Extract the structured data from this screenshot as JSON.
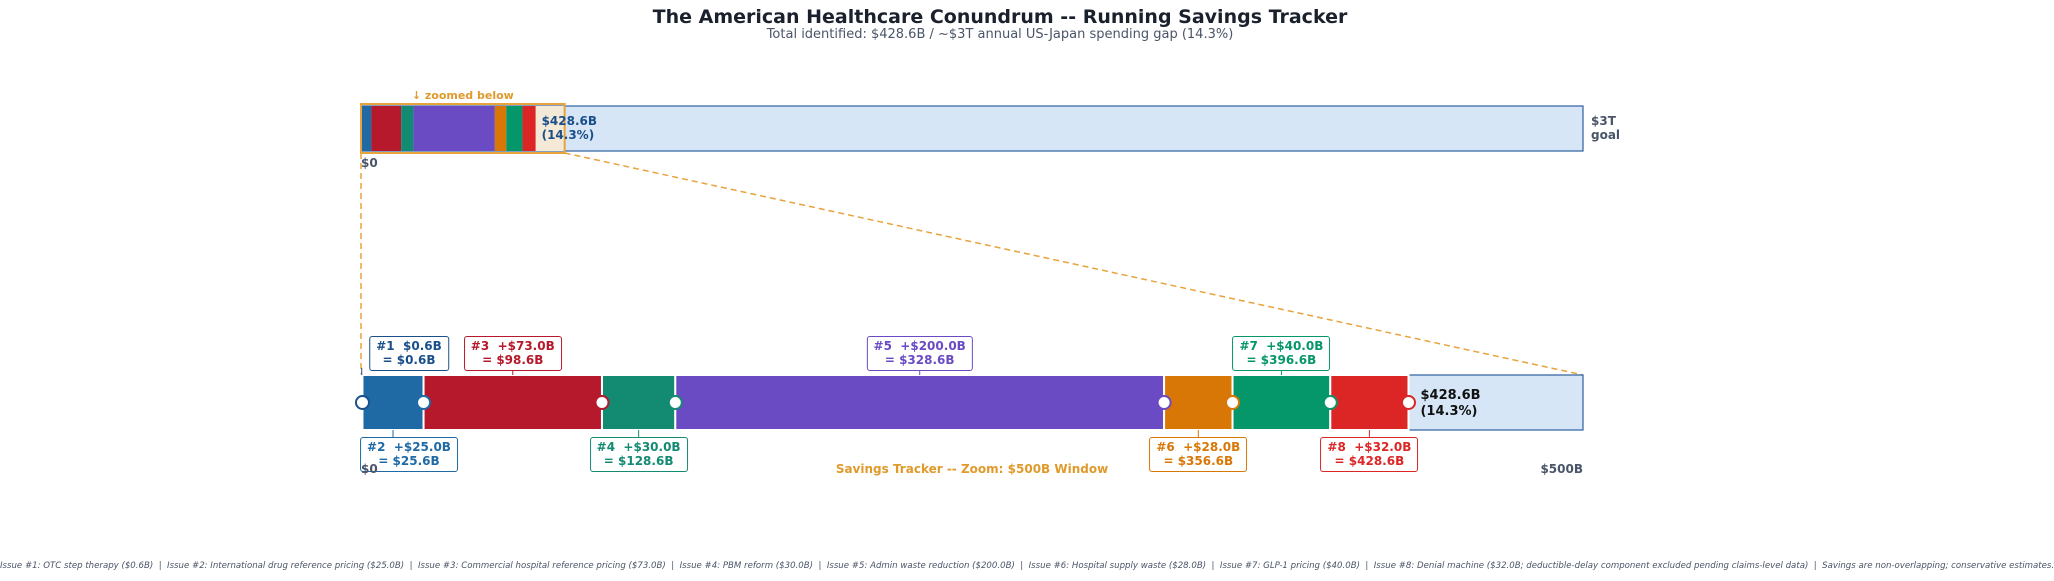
{
  "chart_data": {
    "type": "tracker",
    "title": "The American Healthcare Conundrum -- Running Savings Tracker",
    "subtitle": "Total identified: $428.6B / ~$3T annual US-Japan spending gap (14.3%)",
    "categories": [
      "#1",
      "#2",
      "#3",
      "#4",
      "#5",
      "#6",
      "#7",
      "#8"
    ],
    "values": [
      0.6,
      25.0,
      73.0,
      30.0,
      200.0,
      28.0,
      40.0,
      32.0
    ],
    "value_labels": [
      "#1  $0.6B\n= $0.6B",
      "#2  +$25.0B\n= $25.6B",
      "#3  +$73.0B\n= $98.6B",
      "#4  +$30.0B\n= $128.6B",
      "#5  +$200.0B\n= $328.6B",
      "#6  +$28.0B\n= $356.6B",
      "#7  +$40.0B\n= $396.6B",
      "#8  +$32.0B\n= $428.6B"
    ],
    "label_side": [
      "top",
      "bottom",
      "top",
      "bottom",
      "top",
      "bottom",
      "top",
      "bottom"
    ],
    "colors": [
      "#1a4f8a",
      "#1f6aa5",
      "#b5192b",
      "#138a72",
      "#6a4bc4",
      "#d97706",
      "#059669",
      "#dc2626"
    ],
    "total_label": "$428.6B\n(14.3%)",
    "overview": {
      "xlim": [
        0,
        3000
      ],
      "xticks": [
        {
          "value": 0,
          "label": "$0"
        },
        {
          "value": 3000,
          "label": "$3T\ngoal"
        }
      ],
      "zoom_note": "↓ zoomed below"
    },
    "zoom": {
      "xlim": [
        0,
        500
      ],
      "xticks": [
        {
          "value": 0,
          "label": "$0"
        },
        {
          "value": 500,
          "label": "$500B"
        }
      ],
      "caption": "Savings Tracker -- Zoom: $500B Window"
    },
    "footnote": "Issue #1: OTC step therapy ($0.6B)  |  Issue #2: International drug reference pricing ($25.0B)  |  Issue #3: Commercial hospital reference pricing ($73.0B)  |  Issue #4: PBM reform ($30.0B)  |  Issue #5: Admin waste reduction ($200.0B)  |  Issue #6: Hospital supply waste ($28.0B)  |  Issue #7: GLP-1 pricing ($40.0B)  |  Issue #8: Denial machine ($32.0B; deductible-delay component excluded pending claims-level data)  |  Savings are non-overlapping; conservative estimates."
  }
}
